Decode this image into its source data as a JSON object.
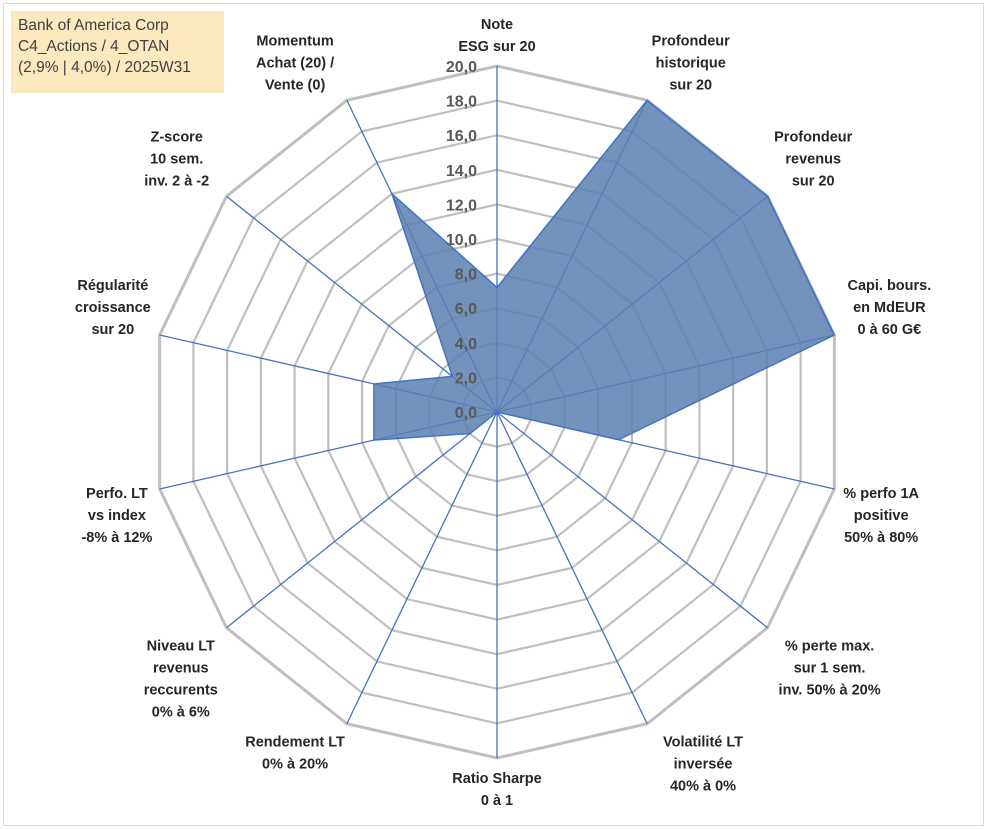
{
  "info_box": {
    "line1": "Bank of America Corp",
    "line2": "C4_Actions / 4_OTAN",
    "line3": "(2,9% | 4,0%) / 2025W31"
  },
  "colors": {
    "grid": "#bfbfbf",
    "spoke": "#4472c4",
    "area_fill": "#5b80b2",
    "area_stroke": "#4472c4",
    "info_bg": "#fde9bf"
  },
  "chart_data": {
    "type": "radar",
    "rmin": 0,
    "rmax": 20,
    "tick_step": 2,
    "ticks": [
      "0,0",
      "2,0",
      "4,0",
      "6,0",
      "8,0",
      "10,0",
      "12,0",
      "14,0",
      "16,0",
      "18,0",
      "20,0"
    ],
    "axes": [
      {
        "label": [
          "Note",
          "ESG sur 20"
        ],
        "value": 7.2
      },
      {
        "label": [
          "Profondeur",
          "historique",
          "sur 20"
        ],
        "value": 20
      },
      {
        "label": [
          "Profondeur",
          "revenus",
          "sur 20"
        ],
        "value": 20
      },
      {
        "label": [
          "Capi. bours.",
          "en MdEUR",
          "0 à 60 G€"
        ],
        "value": 20
      },
      {
        "label": [
          "% perfo 1A",
          "positive",
          "50% à 80%"
        ],
        "value": 7.2
      },
      {
        "label": [
          "% perte max.",
          "sur 1 sem.",
          "inv. 50% à 20%"
        ],
        "value": 0
      },
      {
        "label": [
          "Volatilité LT",
          "inversée",
          "40% à 0%"
        ],
        "value": 0
      },
      {
        "label": [
          "Ratio Sharpe",
          "0 à 1"
        ],
        "value": 0
      },
      {
        "label": [
          "Rendement LT",
          "0% à 20%"
        ],
        "value": 0
      },
      {
        "label": [
          "Niveau LT",
          "revenus",
          "reccurents",
          "0% à 6%"
        ],
        "value": 2.0
      },
      {
        "label": [
          "Perfo. LT",
          "vs index",
          "-8% à 12%"
        ],
        "value": 7.3
      },
      {
        "label": [
          "Régularité",
          "croissance",
          "sur 20"
        ],
        "value": 7.3
      },
      {
        "label": [
          "Z-score",
          "10 sem.",
          "inv. 2 à -2"
        ],
        "value": 3.3
      },
      {
        "label": [
          "Momentum",
          "Achat (20) /",
          "Vente (0)"
        ],
        "value": 14.0
      }
    ]
  }
}
